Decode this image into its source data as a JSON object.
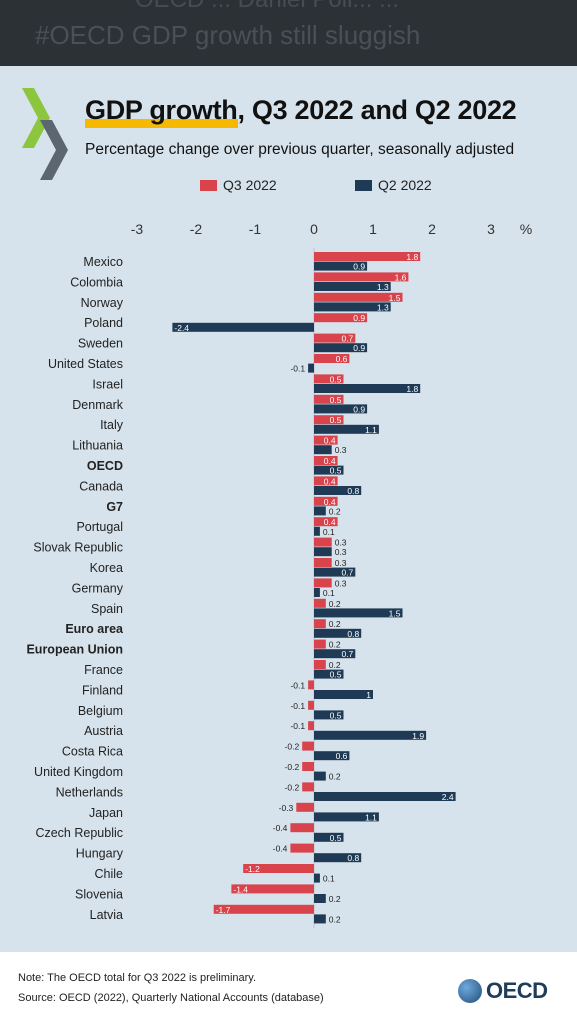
{
  "header": {
    "ghost_line1": "OECD ... Daniel Poll... ...",
    "ghost_line2": "#OECD GDP growth still sluggish"
  },
  "chart_data": {
    "type": "bar",
    "title_highlight": "GDP growth",
    "title_rest": ", Q3 2022 and Q2 2022",
    "subtitle": "Percentage change over previous quarter, seasonally adjusted",
    "unit": "%",
    "xlim": [
      -3,
      3
    ],
    "ticks": [
      "-3",
      "-2",
      "-1",
      "0",
      "1",
      "2",
      "3"
    ],
    "colors": {
      "q3": "#d9434b",
      "q2": "#1e3a54"
    },
    "categories": [
      "Mexico",
      "Colombia",
      "Norway",
      "Poland",
      "Sweden",
      "United States",
      "Israel",
      "Denmark",
      "Italy",
      "Lithuania",
      "OECD",
      "Canada",
      "G7",
      "Portugal",
      "Slovak Republic",
      "Korea",
      "Germany",
      "Spain",
      "Euro area",
      "European Union",
      "France",
      "Finland",
      "Belgium",
      "Austria",
      "Costa Rica",
      "United Kingdom",
      "Netherlands",
      "Japan",
      "Czech Republic",
      "Hungary",
      "Chile",
      "Slovenia",
      "Latvia"
    ],
    "bold_categories": [
      "OECD",
      "G7",
      "Euro area",
      "European Union"
    ],
    "series": [
      {
        "name": "Q3 2022",
        "values": [
          1.8,
          1.6,
          1.5,
          0.9,
          0.7,
          0.6,
          0.5,
          0.5,
          0.5,
          0.4,
          0.4,
          0.4,
          0.4,
          0.4,
          0.3,
          0.3,
          0.3,
          0.2,
          0.2,
          0.2,
          0.2,
          -0.1,
          -0.1,
          -0.1,
          -0.2,
          -0.2,
          -0.2,
          -0.3,
          -0.4,
          -0.4,
          -1.2,
          -1.4,
          -1.7
        ]
      },
      {
        "name": "Q2 2022",
        "values": [
          0.9,
          1.3,
          1.3,
          -2.4,
          0.9,
          -0.1,
          1.8,
          0.9,
          1.1,
          0.3,
          0.5,
          0.8,
          0.2,
          0.1,
          0.3,
          0.7,
          0.1,
          1.5,
          0.8,
          0.7,
          0.5,
          1.0,
          0.5,
          1.9,
          0.6,
          0.2,
          2.4,
          1.1,
          0.5,
          0.8,
          0.1,
          0.2,
          0.2
        ]
      }
    ]
  },
  "footer": {
    "note": "Note: The OECD total for Q3 2022 is preliminary.",
    "source": "Source: OECD (2022), Quarterly National Accounts (database)",
    "logo_text": "OECD"
  }
}
